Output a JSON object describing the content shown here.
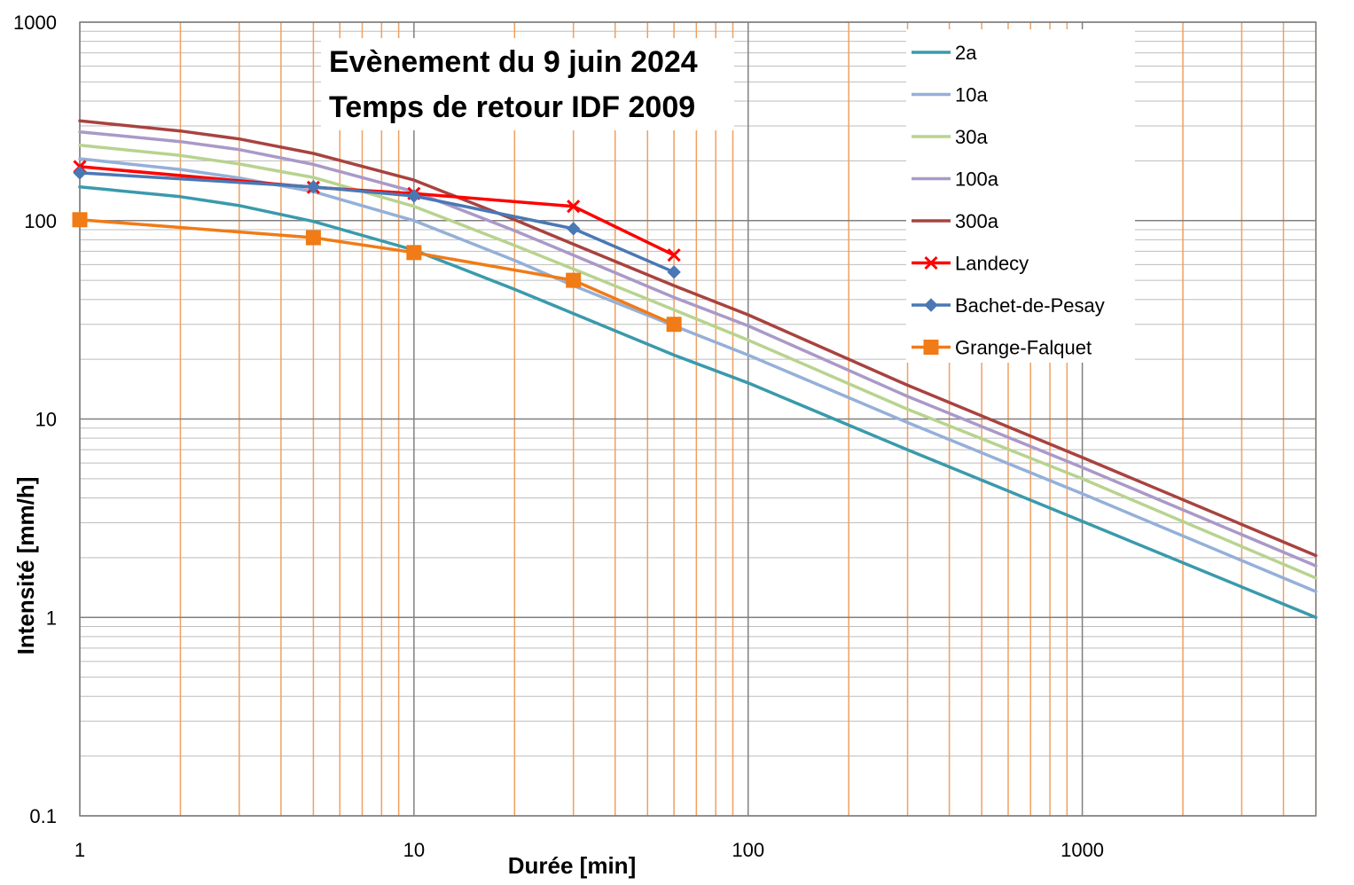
{
  "chart_data": {
    "type": "line",
    "title_lines": [
      "Evènement du 9 juin 2024",
      "Temps de retour IDF 2009"
    ],
    "xlabel": "Durée [min]",
    "ylabel": "Intensité [mm/h]",
    "x_scale": "log",
    "y_scale": "log",
    "xlim": [
      1,
      5000
    ],
    "ylim": [
      0.1,
      1000
    ],
    "x_ticks": [
      1,
      10,
      100,
      1000
    ],
    "x_tick_labels": [
      "1",
      "10",
      "100",
      "1000"
    ],
    "y_ticks": [
      1000,
      100,
      10,
      1,
      0.1
    ],
    "y_tick_labels": [
      "1000",
      "100",
      "10",
      "1",
      "0.1"
    ],
    "grid": true,
    "legend_position": "top-right",
    "colors": {
      "major_grid": "#808080",
      "minor_y_grid": "#bdbdbd",
      "minor_x_grid": "#f0a060"
    },
    "series": [
      {
        "name": "2a",
        "color": "#3a9aac",
        "marker": "none",
        "x": [
          1,
          2,
          3,
          5,
          10,
          20,
          30,
          60,
          100,
          300,
          1000,
          5000
        ],
        "y": [
          148,
          132,
          119,
          99,
          71,
          45,
          34,
          21,
          15.2,
          7.0,
          3.05,
          1.0
        ]
      },
      {
        "name": "10a",
        "color": "#95b0d8",
        "marker": "none",
        "x": [
          1,
          2,
          3,
          5,
          10,
          20,
          30,
          60,
          100,
          300,
          1000,
          5000
        ],
        "y": [
          205,
          181,
          164,
          140,
          100,
          63,
          47,
          29.5,
          21.0,
          9.6,
          4.2,
          1.35
        ]
      },
      {
        "name": "30a",
        "color": "#b8d38f",
        "marker": "none",
        "x": [
          1,
          2,
          3,
          5,
          10,
          20,
          30,
          60,
          100,
          300,
          1000,
          5000
        ],
        "y": [
          240,
          213,
          193,
          165,
          118,
          75,
          57,
          35.5,
          25.0,
          11.2,
          5.0,
          1.58
        ]
      },
      {
        "name": "100a",
        "color": "#aa99c8",
        "marker": "none",
        "x": [
          1,
          2,
          3,
          5,
          10,
          20,
          30,
          60,
          100,
          300,
          1000,
          5000
        ],
        "y": [
          280,
          250,
          228,
          192,
          140,
          89,
          67,
          41,
          29.5,
          13.0,
          5.7,
          1.82
        ]
      },
      {
        "name": "300a",
        "color": "#a84340",
        "marker": "none",
        "x": [
          1,
          2,
          3,
          5,
          10,
          20,
          30,
          60,
          100,
          300,
          1000,
          5000
        ],
        "y": [
          318,
          283,
          258,
          218,
          160,
          101,
          76,
          47,
          33.5,
          14.8,
          6.4,
          2.05
        ]
      },
      {
        "name": "Landecy",
        "color": "#ff0000",
        "marker": "x",
        "x": [
          1,
          5,
          10,
          30,
          60
        ],
        "y": [
          187,
          147,
          137,
          118,
          67
        ]
      },
      {
        "name": "Bachet-de-Pesay",
        "color": "#4a78b5",
        "marker": "diamond",
        "x": [
          1,
          5,
          10,
          30,
          60
        ],
        "y": [
          174,
          148,
          133,
          91,
          55
        ]
      },
      {
        "name": "Grange-Falquet",
        "color": "#f07b17",
        "marker": "square",
        "x": [
          1,
          5,
          10,
          30,
          60
        ],
        "y": [
          101,
          82,
          69,
          50,
          30
        ]
      }
    ]
  }
}
